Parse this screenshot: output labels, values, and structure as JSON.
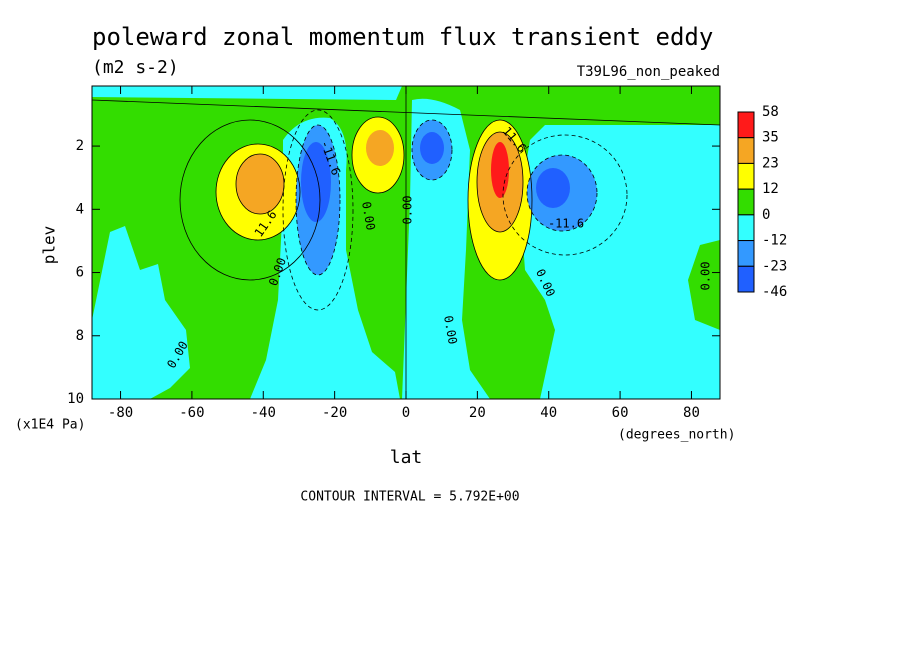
{
  "chart_data": {
    "type": "contour",
    "title": "poleward zonal momentum flux transient eddy",
    "subtitle": "(m2 s-2)",
    "dataset": "T39L96_non_peaked",
    "x_label": "lat",
    "x_units": "(degrees_north)",
    "y_label": "plev",
    "y_units": "(x1E4 Pa)",
    "xlim": [
      -88,
      88
    ],
    "xticks": [
      -80,
      -60,
      -40,
      -20,
      0,
      20,
      40,
      60,
      80
    ],
    "ylim": [
      10,
      0.1
    ],
    "yticks": [
      2,
      4,
      6,
      8,
      10
    ],
    "levels": [
      58,
      35,
      23,
      12,
      0,
      -12,
      -23,
      -46
    ],
    "colors": [
      "#ff1a1a",
      "#f5a623",
      "#ffff00",
      "#33dd00",
      "#33ffff",
      "#3399ff",
      "#2060ff"
    ],
    "contour_labels": [
      "-11.6",
      "11.6",
      "0.00",
      "0.00",
      "0.00",
      "0.00",
      "11.6",
      "-11.6",
      "0.00",
      "0.00",
      "0.00"
    ],
    "footer": "CONTOUR INTERVAL = 5.792E+00"
  }
}
